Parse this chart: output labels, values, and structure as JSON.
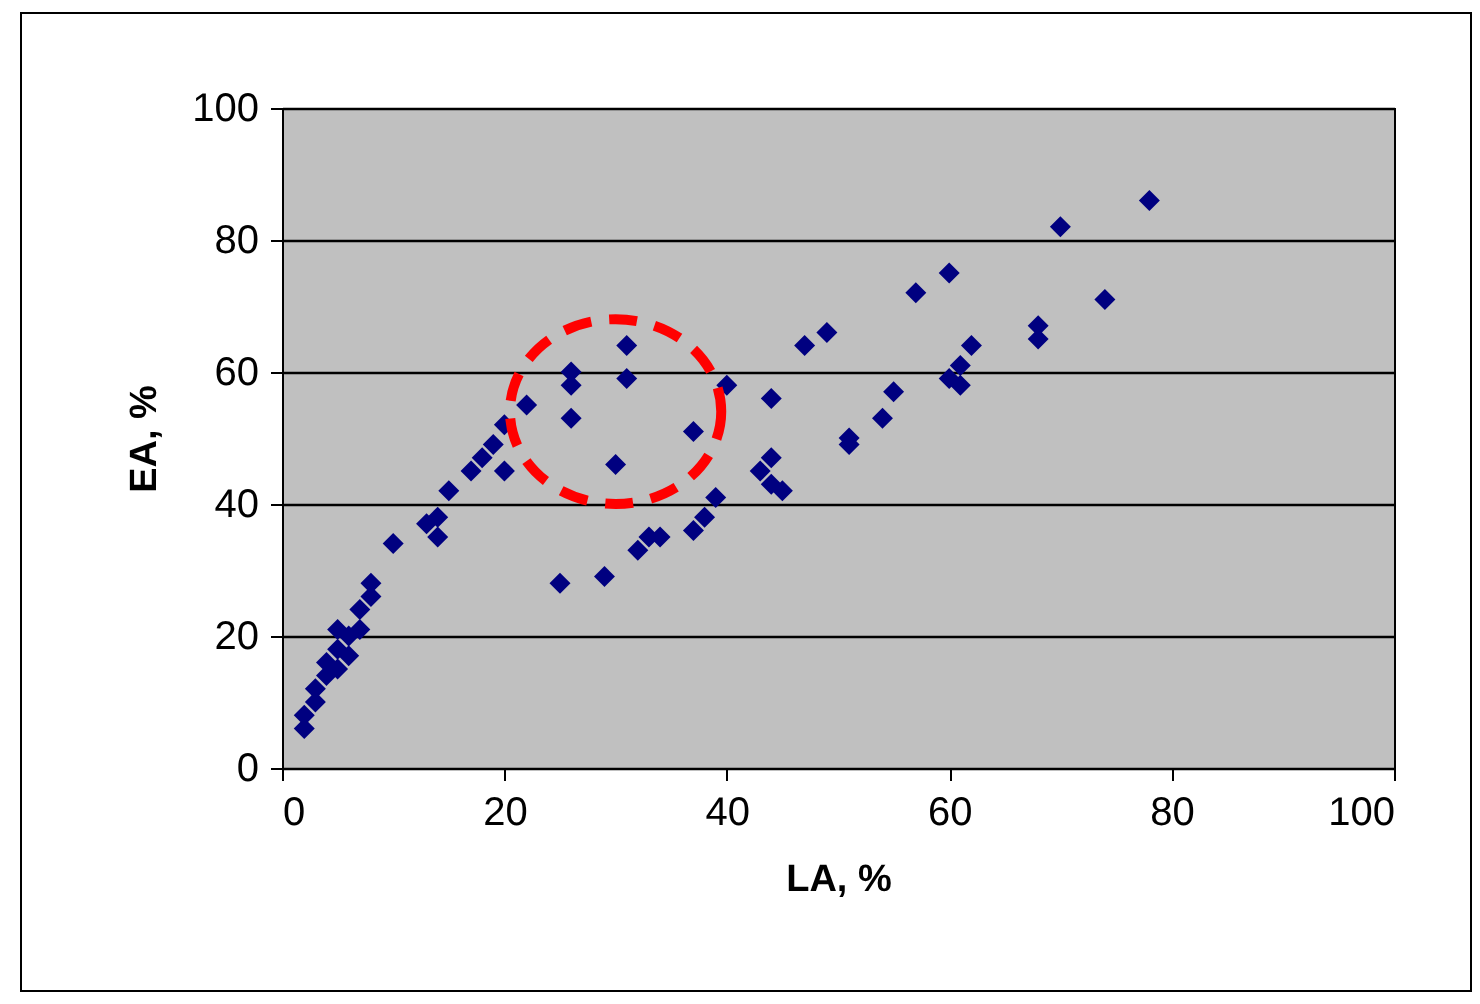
{
  "chart_data": {
    "type": "scatter",
    "xlabel": "LA, %",
    "ylabel": "EA, %",
    "xlim": [
      0,
      100
    ],
    "xticks": [
      0,
      20,
      40,
      60,
      80,
      100
    ],
    "ylim": [
      0,
      100
    ],
    "yticks": [
      0,
      20,
      40,
      60,
      80,
      100
    ],
    "grid": "y",
    "marker": "diamond",
    "series": [
      {
        "color": "#000080",
        "x": [
          2,
          2,
          3,
          3,
          4,
          4,
          5,
          5,
          5,
          6,
          6,
          7,
          7,
          8,
          8,
          10,
          13,
          14,
          14,
          15,
          17,
          18,
          19,
          20,
          20,
          22,
          25,
          26,
          26,
          26,
          29,
          30,
          31,
          31,
          32,
          33,
          34,
          37,
          37,
          38,
          39,
          40,
          43,
          44,
          44,
          44,
          45,
          47,
          49,
          51,
          51,
          54,
          55,
          57,
          60,
          60,
          61,
          61,
          62,
          68,
          68,
          70,
          74,
          78
        ],
        "values": [
          6,
          8,
          10,
          12,
          14,
          16,
          15,
          18,
          21,
          17,
          20,
          21,
          24,
          26,
          28,
          34,
          37,
          35,
          38,
          42,
          45,
          47,
          49,
          45,
          52,
          55,
          28,
          53,
          58,
          60,
          29,
          46,
          59,
          64,
          33,
          35,
          35,
          36,
          51,
          38,
          41,
          58,
          45,
          47,
          56,
          43,
          42,
          64,
          66,
          49,
          50,
          53,
          57,
          72,
          75,
          59,
          58,
          61,
          64,
          65,
          67,
          82,
          71,
          86
        ]
      }
    ]
  }
}
